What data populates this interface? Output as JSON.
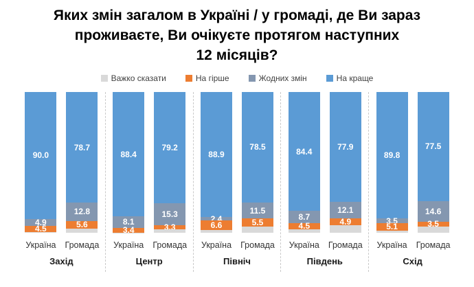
{
  "title_lines": [
    "Яких змін загалом в Україні / у громаді, де Ви зараз",
    "проживаєте, Ви очікуєте протягом наступних",
    "12 місяців?"
  ],
  "legend": {
    "items": [
      {
        "label": "Важко сказати",
        "color": "#D9D9D9"
      },
      {
        "label": "На гірше",
        "color": "#ED7D31"
      },
      {
        "label": "Жодних змін",
        "color": "#8497B0"
      },
      {
        "label": "На краще",
        "color": "#5B9BD5"
      }
    ]
  },
  "chart_data": {
    "type": "bar",
    "stacked": true,
    "units": "percent",
    "ymax": 100,
    "legend_position": "top",
    "title": "Яких змін загалом в Україні / у громаді, де Ви зараз проживаєте, Ви очікуєте протягом наступних 12 місяців?",
    "stack_order_top_to_bottom": [
      "На краще",
      "Жодних змін",
      "На гірше",
      "Важко сказати"
    ],
    "colors": {
      "На краще": "#5B9BD5",
      "Жодних змін": "#8497B0",
      "На гірше": "#ED7D31",
      "Важко сказати": "#D9D9D9"
    },
    "groups": [
      {
        "region": "Захід",
        "bars": [
          {
            "label": "Україна",
            "segments": [
              {
                "name": "На краще",
                "value": 90.0,
                "text": "90.0"
              },
              {
                "name": "Жодних змін",
                "value": 4.9,
                "text": "4.9"
              },
              {
                "name": "На гірше",
                "value": 4.5,
                "text": "4.5"
              },
              {
                "name": "Важко сказати",
                "value": 0.6,
                "text": ""
              }
            ]
          },
          {
            "label": "Громада",
            "segments": [
              {
                "name": "На краще",
                "value": 78.7,
                "text": "78.7"
              },
              {
                "name": "Жодних змін",
                "value": 12.8,
                "text": "12.8"
              },
              {
                "name": "На гірше",
                "value": 5.6,
                "text": "5.6"
              },
              {
                "name": "Важко сказати",
                "value": 2.9,
                "text": ""
              }
            ]
          }
        ]
      },
      {
        "region": "Центр",
        "bars": [
          {
            "label": "Україна",
            "segments": [
              {
                "name": "На краще",
                "value": 88.4,
                "text": "88.4"
              },
              {
                "name": "Жодних змін",
                "value": 8.1,
                "text": "8.1"
              },
              {
                "name": "На гірше",
                "value": 3.4,
                "text": "3.4"
              },
              {
                "name": "Важко сказати",
                "value": 0.1,
                "text": ""
              }
            ]
          },
          {
            "label": "Громада",
            "segments": [
              {
                "name": "На краще",
                "value": 79.2,
                "text": "79.2"
              },
              {
                "name": "Жодних змін",
                "value": 15.3,
                "text": "15.3"
              },
              {
                "name": "На гірше",
                "value": 3.3,
                "text": "3.3"
              },
              {
                "name": "Важко сказати",
                "value": 2.2,
                "text": ""
              }
            ]
          }
        ]
      },
      {
        "region": "Північ",
        "bars": [
          {
            "label": "Україна",
            "segments": [
              {
                "name": "На краще",
                "value": 88.9,
                "text": "88.9"
              },
              {
                "name": "Жодних змін",
                "value": 2.4,
                "text": "2.4"
              },
              {
                "name": "На гірше",
                "value": 6.6,
                "text": "6.6"
              },
              {
                "name": "Важко сказати",
                "value": 2.1,
                "text": ""
              }
            ]
          },
          {
            "label": "Громада",
            "segments": [
              {
                "name": "На краще",
                "value": 78.5,
                "text": "78.5"
              },
              {
                "name": "Жодних змін",
                "value": 11.5,
                "text": "11.5"
              },
              {
                "name": "На гірше",
                "value": 5.5,
                "text": "5.5"
              },
              {
                "name": "Важко сказати",
                "value": 4.5,
                "text": ""
              }
            ]
          }
        ]
      },
      {
        "region": "Південь",
        "bars": [
          {
            "label": "Україна",
            "segments": [
              {
                "name": "На краще",
                "value": 84.4,
                "text": "84.4"
              },
              {
                "name": "Жодних змін",
                "value": 8.7,
                "text": "8.7"
              },
              {
                "name": "На гірше",
                "value": 4.5,
                "text": "4.5"
              },
              {
                "name": "Важко сказати",
                "value": 2.4,
                "text": ""
              }
            ]
          },
          {
            "label": "Громада",
            "segments": [
              {
                "name": "На краще",
                "value": 77.9,
                "text": "77.9"
              },
              {
                "name": "Жодних змін",
                "value": 12.1,
                "text": "12.1"
              },
              {
                "name": "На гірше",
                "value": 4.9,
                "text": "4.9"
              },
              {
                "name": "Важко сказати",
                "value": 5.1,
                "text": ""
              }
            ]
          }
        ]
      },
      {
        "region": "Схід",
        "bars": [
          {
            "label": "Україна",
            "segments": [
              {
                "name": "На краще",
                "value": 89.8,
                "text": "89.8"
              },
              {
                "name": "Жодних змін",
                "value": 3.5,
                "text": "3.5"
              },
              {
                "name": "На гірше",
                "value": 5.1,
                "text": "5.1"
              },
              {
                "name": "Важко сказати",
                "value": 1.6,
                "text": ""
              }
            ]
          },
          {
            "label": "Громада",
            "segments": [
              {
                "name": "На краще",
                "value": 77.5,
                "text": "77.5"
              },
              {
                "name": "Жодних змін",
                "value": 14.6,
                "text": "14.6"
              },
              {
                "name": "На гірше",
                "value": 3.5,
                "text": "3.5"
              },
              {
                "name": "Важко сказати",
                "value": 4.4,
                "text": ""
              }
            ]
          }
        ]
      }
    ]
  }
}
